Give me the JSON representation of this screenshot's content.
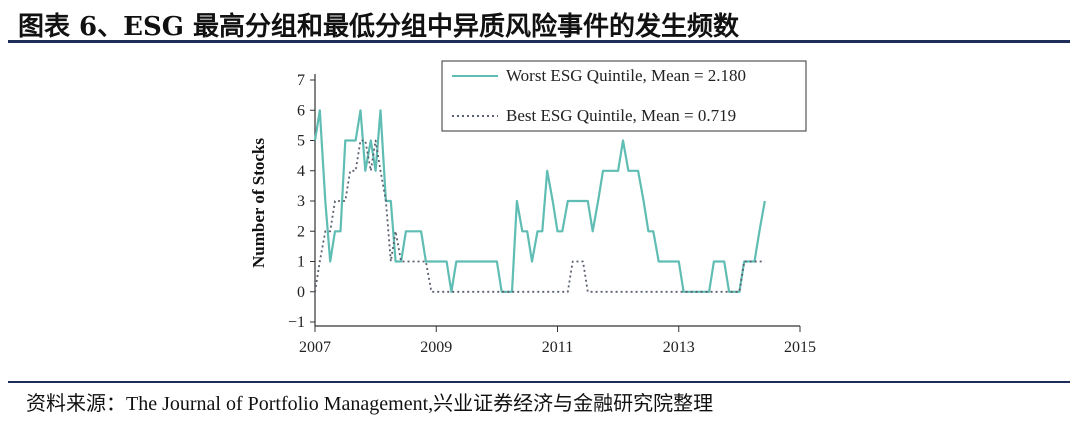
{
  "figure": {
    "title": "图表 6、ESG 最高分组和最低分组中异质风险事件的发生频数",
    "source": "资料来源：The Journal of Portfolio Management,兴业证券经济与金融研究院整理"
  },
  "colors": {
    "worst": "#5fbdb3",
    "best": "#5a6070",
    "rule": "#1f2d5a",
    "axis": "#333333"
  },
  "chart_data": {
    "type": "line",
    "xlabel": "",
    "ylabel": "Number of Stocks",
    "xlim": [
      2007,
      2015
    ],
    "ylim": [
      -1,
      7
    ],
    "xticks": [
      "2007",
      "2009",
      "2011",
      "2013",
      "2015"
    ],
    "yticks": [
      "7",
      "6",
      "5",
      "4",
      "3",
      "2",
      "1",
      "0",
      "−1"
    ],
    "legend": [
      "Worst ESG Quintile, Mean = 2.180",
      "Best ESG Quintile, Mean = 0.719"
    ],
    "legend_position": "top-right",
    "series": [
      {
        "name": "Worst ESG Quintile, Mean = 2.180",
        "style": "solid",
        "x": [
          2007.0,
          2007.08,
          2007.17,
          2007.25,
          2007.33,
          2007.42,
          2007.5,
          2007.58,
          2007.67,
          2007.75,
          2007.83,
          2007.92,
          2008.0,
          2008.08,
          2008.17,
          2008.25,
          2008.33,
          2008.42,
          2008.5,
          2008.58,
          2008.67,
          2008.75,
          2008.83,
          2008.92,
          2009.0,
          2009.08,
          2009.17,
          2009.25,
          2009.33,
          2009.42,
          2009.5,
          2009.58,
          2009.67,
          2009.75,
          2009.83,
          2009.92,
          2010.0,
          2010.08,
          2010.17,
          2010.25,
          2010.33,
          2010.42,
          2010.5,
          2010.58,
          2010.67,
          2010.75,
          2010.83,
          2010.92,
          2011.0,
          2011.08,
          2011.17,
          2011.25,
          2011.33,
          2011.42,
          2011.5,
          2011.58,
          2011.67,
          2011.75,
          2011.83,
          2011.92,
          2012.0,
          2012.08,
          2012.17,
          2012.25,
          2012.33,
          2012.42,
          2012.5,
          2012.58,
          2012.67,
          2012.75,
          2012.83,
          2012.92,
          2013.0,
          2013.08,
          2013.17,
          2013.25,
          2013.33,
          2013.42,
          2013.5,
          2013.58,
          2013.67,
          2013.75,
          2013.83,
          2013.92,
          2014.0,
          2014.08,
          2014.17,
          2014.25,
          2014.33,
          2014.42
        ],
        "values": [
          5,
          6,
          3,
          1,
          2,
          2,
          5,
          5,
          5,
          6,
          4,
          5,
          4,
          6,
          3,
          3,
          1,
          1,
          2,
          2,
          2,
          2,
          1,
          1,
          1,
          1,
          1,
          0,
          1,
          1,
          1,
          1,
          1,
          1,
          1,
          1,
          1,
          0,
          0,
          0,
          3,
          2,
          2,
          1,
          2,
          2,
          4,
          3,
          2,
          2,
          3,
          3,
          3,
          3,
          3,
          2,
          3,
          4,
          4,
          4,
          4,
          5,
          4,
          4,
          4,
          3,
          2,
          2,
          1,
          1,
          1,
          1,
          1,
          0,
          0,
          0,
          0,
          0,
          0,
          1,
          1,
          1,
          0,
          0,
          0,
          1,
          1,
          1,
          2,
          3
        ]
      },
      {
        "name": "Best ESG Quintile, Mean = 0.719",
        "style": "dotted",
        "x": [
          2007.0,
          2007.08,
          2007.17,
          2007.25,
          2007.33,
          2007.42,
          2007.5,
          2007.58,
          2007.67,
          2007.75,
          2007.83,
          2007.92,
          2008.0,
          2008.08,
          2008.17,
          2008.25,
          2008.33,
          2008.42,
          2008.5,
          2008.58,
          2008.67,
          2008.75,
          2008.83,
          2008.92,
          2009.0,
          2009.08,
          2009.17,
          2009.25,
          2009.33,
          2009.42,
          2009.5,
          2009.58,
          2009.67,
          2009.75,
          2009.83,
          2009.92,
          2010.0,
          2010.08,
          2010.17,
          2010.25,
          2010.33,
          2010.42,
          2010.5,
          2010.58,
          2010.67,
          2010.75,
          2010.83,
          2010.92,
          2011.0,
          2011.08,
          2011.17,
          2011.25,
          2011.33,
          2011.42,
          2011.5,
          2011.58,
          2011.67,
          2011.75,
          2011.83,
          2011.92,
          2012.0,
          2012.08,
          2012.17,
          2012.25,
          2012.33,
          2012.42,
          2012.5,
          2012.58,
          2012.67,
          2012.75,
          2012.83,
          2012.92,
          2013.0,
          2013.08,
          2013.17,
          2013.25,
          2013.33,
          2013.42,
          2013.5,
          2013.58,
          2013.67,
          2013.75,
          2013.83,
          2013.92,
          2014.0,
          2014.08,
          2014.17,
          2014.25,
          2014.33,
          2014.42
        ],
        "values": [
          0,
          1,
          2,
          2,
          3,
          3,
          3,
          4,
          4,
          5,
          5,
          4,
          5,
          4,
          3,
          1,
          2,
          1,
          1,
          1,
          1,
          1,
          1,
          0,
          0,
          0,
          0,
          0,
          0,
          0,
          0,
          0,
          0,
          0,
          0,
          0,
          0,
          0,
          0,
          0,
          0,
          0,
          0,
          0,
          0,
          0,
          0,
          0,
          0,
          0,
          0,
          1,
          1,
          1,
          0,
          0,
          0,
          0,
          0,
          0,
          0,
          0,
          0,
          0,
          0,
          0,
          0,
          0,
          0,
          0,
          0,
          0,
          0,
          0,
          0,
          0,
          0,
          0,
          0,
          0,
          0,
          0,
          0,
          0,
          0,
          1,
          1,
          1,
          1,
          1
        ]
      }
    ]
  }
}
